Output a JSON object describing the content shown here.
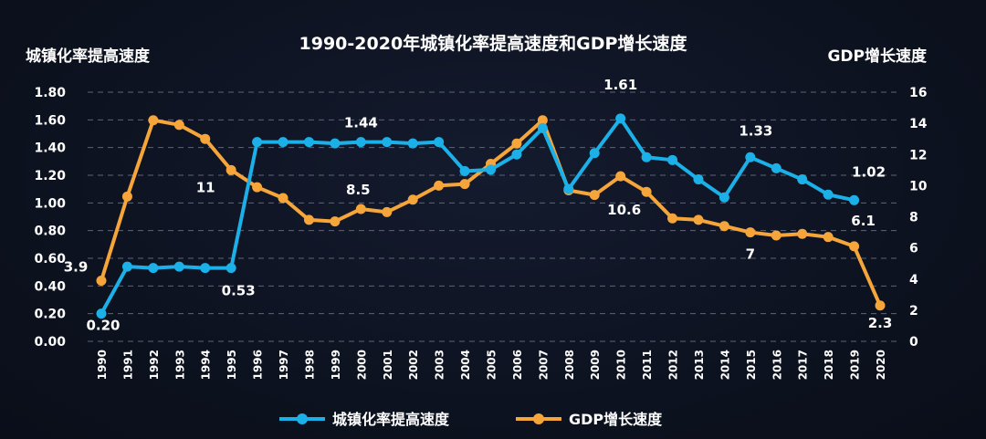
{
  "chart_data": {
    "type": "line",
    "title": "1990-2020年城镇化率提高速度和GDP增长速度",
    "ylabel_left": "城镇化率提高速度",
    "ylabel_right": "GDP增长速度",
    "x": [
      "1990",
      "1991",
      "1992",
      "1993",
      "1994",
      "1995",
      "1996",
      "1997",
      "1998",
      "1999",
      "2000",
      "2001",
      "2002",
      "2003",
      "2004",
      "2005",
      "2006",
      "2007",
      "2008",
      "2009",
      "2010",
      "2011",
      "2012",
      "2013",
      "2014",
      "2015",
      "2016",
      "2017",
      "2018",
      "2019",
      "2020"
    ],
    "y_left_ticks": [
      "0.00",
      "0.20",
      "0.40",
      "0.60",
      "0.80",
      "1.00",
      "1.20",
      "1.40",
      "1.60",
      "1.80"
    ],
    "y_left_range": [
      0,
      1.8
    ],
    "y_right_ticks": [
      "0",
      "2",
      "4",
      "6",
      "8",
      "10",
      "12",
      "14",
      "16"
    ],
    "y_right_range": [
      0,
      16
    ],
    "grid": "horizontal dashed",
    "legend_position": "bottom",
    "colors": {
      "urbanization": "#1bb1e8",
      "gdp": "#f5a53a"
    },
    "series": [
      {
        "name": "城镇化率提高速度",
        "axis": "left",
        "values": [
          0.2,
          0.54,
          0.53,
          0.54,
          0.53,
          0.53,
          1.44,
          1.44,
          1.44,
          1.43,
          1.44,
          1.44,
          1.43,
          1.44,
          1.23,
          1.24,
          1.35,
          1.54,
          1.1,
          1.36,
          1.61,
          1.33,
          1.31,
          1.17,
          1.04,
          1.33,
          1.25,
          1.17,
          1.06,
          1.02,
          null
        ]
      },
      {
        "name": "GDP增长速度",
        "axis": "right",
        "values": [
          3.9,
          9.3,
          14.2,
          13.9,
          13.0,
          11.0,
          9.9,
          9.2,
          7.8,
          7.7,
          8.5,
          8.3,
          9.1,
          10.0,
          10.1,
          11.4,
          12.7,
          14.2,
          9.7,
          9.4,
          10.6,
          9.6,
          7.9,
          7.8,
          7.4,
          7.0,
          6.8,
          6.9,
          6.7,
          6.1,
          2.3
        ]
      }
    ],
    "data_labels": [
      {
        "series": 0,
        "index": 0,
        "text": "0.20"
      },
      {
        "series": 0,
        "index": 5,
        "text": "0.53"
      },
      {
        "series": 0,
        "index": 10,
        "text": "1.44"
      },
      {
        "series": 0,
        "index": 20,
        "text": "1.61"
      },
      {
        "series": 0,
        "index": 25,
        "text": "1.33"
      },
      {
        "series": 0,
        "index": 29,
        "text": "1.02"
      },
      {
        "series": 1,
        "index": 0,
        "text": "3.9"
      },
      {
        "series": 1,
        "index": 5,
        "text": "11"
      },
      {
        "series": 1,
        "index": 10,
        "text": "8.5"
      },
      {
        "series": 1,
        "index": 20,
        "text": "10.6"
      },
      {
        "series": 1,
        "index": 25,
        "text": "7"
      },
      {
        "series": 1,
        "index": 29,
        "text": "6.1"
      },
      {
        "series": 1,
        "index": 30,
        "text": "2.3"
      }
    ]
  }
}
